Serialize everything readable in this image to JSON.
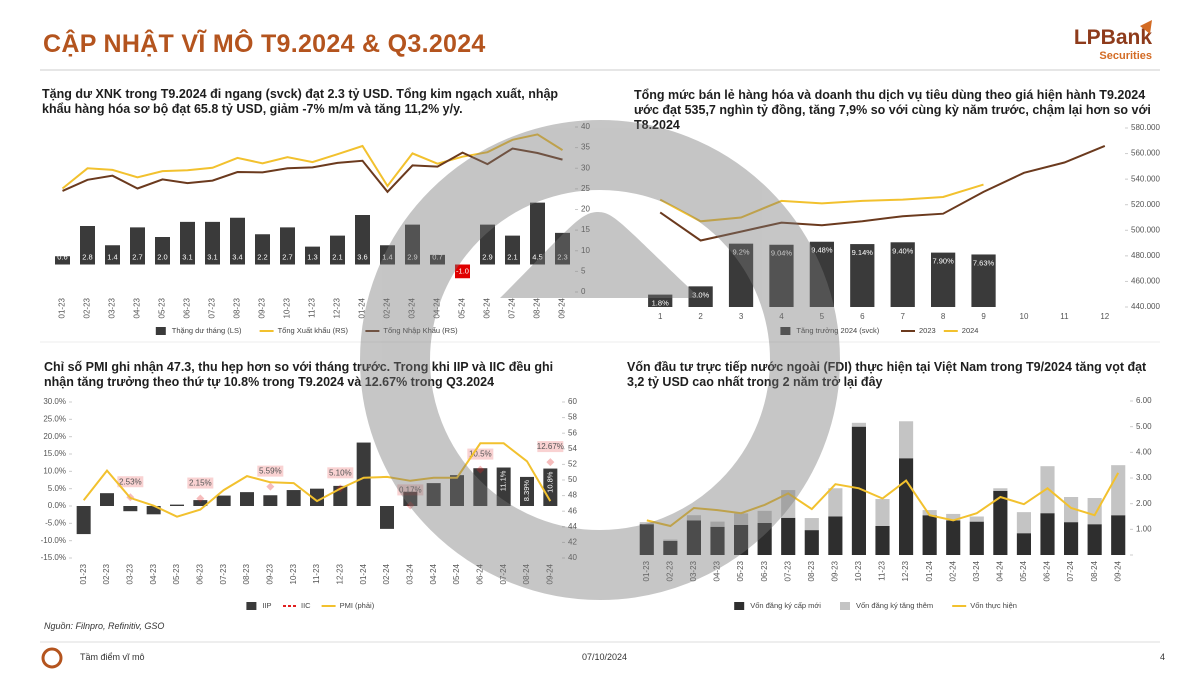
{
  "header": {
    "title": "CẬP NHẬT VĨ MÔ T9.2024 & Q3.2024",
    "logo": "LPBank",
    "logo_sub": "Securities"
  },
  "footer": {
    "source": "Nguồn: Filnpro, Refinitiv, GSO",
    "section": "Tầm điểm vĩ mô",
    "date": "07/10/2024",
    "page": "4"
  },
  "chart_data": [
    {
      "type": "combo",
      "title": "Tặng dư XNK trong T9.2024 đi ngang (svck) đạt 2.3 tỷ USD. Tổng kim ngạch xuất, nhập khẩu hàng hóa sơ bộ đạt 65.8 tỷ USD, giảm -7% m/m và tăng 11,2% y/y.",
      "categories": [
        "01-23",
        "02-23",
        "03-23",
        "04-23",
        "05-23",
        "06-23",
        "07-23",
        "08-23",
        "09-23",
        "10-23",
        "11-23",
        "12-23",
        "01-24",
        "02-24",
        "03-24",
        "04-24",
        "05-24",
        "06-24",
        "07-24",
        "08-24",
        "09-24"
      ],
      "ylim": [
        -2,
        10
      ],
      "y2lim": [
        0,
        40
      ],
      "y2ticks": [
        0,
        5,
        10,
        15,
        20,
        25,
        30,
        35,
        40
      ],
      "series": [
        {
          "name": "Thặng dư tháng (LS)",
          "kind": "bar",
          "color": "#3a3a3a",
          "negative_color": "#e00000",
          "values": [
            0.6,
            2.8,
            1.4,
            2.7,
            2.0,
            3.1,
            3.1,
            3.4,
            2.2,
            2.7,
            1.3,
            2.1,
            3.6,
            1.4,
            2.9,
            0.7,
            -1.0,
            2.9,
            2.1,
            4.5,
            2.3
          ],
          "value_labels": [
            "0.6",
            "2.8",
            "1.4",
            "2.7",
            "2.0",
            "3.1",
            "3.1",
            "3.4",
            "2.2",
            "2.7",
            "1.3",
            "2.1",
            "3.6",
            "1.4",
            "2.9",
            "0.7",
            "-1.0",
            "2.9",
            "2.1",
            "4.5",
            "2.3"
          ]
        },
        {
          "name": "Tổng Xuất khẩu (RS)",
          "kind": "line",
          "axis": "y2",
          "color": "#f2c12e",
          "values": [
            25.1,
            30.0,
            29.6,
            27.8,
            29.3,
            29.5,
            30.1,
            32.5,
            31.2,
            32.7,
            31.5,
            33.4,
            35.4,
            25.7,
            33.6,
            31.1,
            32.8,
            33.9,
            36.9,
            38.2,
            34.4
          ]
        },
        {
          "name": "Tổng Nhập Khẩu (RS)",
          "kind": "line",
          "axis": "y2",
          "color": "#6b3a1e",
          "values": [
            24.5,
            27.2,
            28.2,
            25.1,
            27.3,
            26.4,
            27.0,
            29.1,
            29.0,
            30.0,
            30.2,
            31.3,
            31.8,
            24.3,
            30.7,
            30.4,
            33.8,
            31.0,
            34.8,
            33.7,
            32.1
          ]
        }
      ]
    },
    {
      "type": "combo",
      "title": "Tổng mức bán lẻ hàng hóa và doanh thu dịch vụ tiêu dùng theo giá hiện hành T9.2024 ước đạt 535,7 nghìn tỷ đồng, tăng 7,9% so với cùng kỳ năm trước, chậm lại hơn so với T8.2024",
      "categories": [
        "1",
        "2",
        "3",
        "4",
        "5",
        "6",
        "7",
        "8",
        "9",
        "10",
        "11",
        "12"
      ],
      "ylim": [
        0,
        26
      ],
      "y2lim": [
        440000,
        580000
      ],
      "y2ticks": [
        {
          "value": 440000,
          "label": "440.000"
        },
        {
          "value": 460000,
          "label": "460.000"
        },
        {
          "value": 480000,
          "label": "480.000"
        },
        {
          "value": 500000,
          "label": "500.000"
        },
        {
          "value": 520000,
          "label": "520.000"
        },
        {
          "value": 540000,
          "label": "540.000"
        },
        {
          "value": 560000,
          "label": "560.000"
        },
        {
          "value": 580000,
          "label": "580.000"
        }
      ],
      "series": [
        {
          "name": "Tăng trưởng 2024 (svck)",
          "kind": "bar",
          "color": "#3a3a3a",
          "values": [
            1.8,
            3.0,
            9.2,
            9.04,
            9.48,
            9.14,
            9.4,
            7.9,
            7.63,
            null,
            null,
            null
          ],
          "value_labels": [
            "1.8%",
            "3.0%",
            "9.2%",
            "9.04%",
            "9.48%",
            "9.14%",
            "9.40%",
            "7.90%",
            "7.63%",
            null,
            null,
            null
          ]
        },
        {
          "name": "2023",
          "kind": "line",
          "axis": "y2",
          "color": "#6b3a1e",
          "values": [
            514000,
            492000,
            499000,
            506000,
            504000,
            507000,
            511000,
            513000,
            530000,
            545000,
            553000,
            566000
          ]
        },
        {
          "name": "2024",
          "kind": "line",
          "axis": "y2",
          "color": "#f2c12e",
          "values": [
            524000,
            507000,
            510000,
            523000,
            521000,
            523000,
            524000,
            526000,
            535700,
            null,
            null,
            null
          ]
        }
      ]
    },
    {
      "type": "combo",
      "title": "Chỉ số PMI ghi nhận 47.3, thu hẹp hơn so với tháng trước. Trong khi IIP và IIC đều ghi nhận tăng trưởng theo thứ tự 10.8% trong T9.2024 và 12.67% trong Q3.2024",
      "categories": [
        "01-23",
        "02-23",
        "03-23",
        "04-23",
        "05-23",
        "06-23",
        "07-23",
        "08-23",
        "09-23",
        "10-23",
        "11-23",
        "12-23",
        "01-24",
        "02-24",
        "03-24",
        "04-24",
        "05-24",
        "06-24",
        "07-24",
        "08-24",
        "09-24"
      ],
      "ylim": [
        -15,
        30
      ],
      "yticks": [
        {
          "value": -15,
          "label": "-15.0%"
        },
        {
          "value": -10,
          "label": "-10.0%"
        },
        {
          "value": -5,
          "label": "-5.0%"
        },
        {
          "value": 0,
          "label": "0.0%"
        },
        {
          "value": 5,
          "label": "5.0%"
        },
        {
          "value": 10,
          "label": "10.0%"
        },
        {
          "value": 15,
          "label": "15.0%"
        },
        {
          "value": 20,
          "label": "20.0%"
        },
        {
          "value": 25,
          "label": "25.0%"
        },
        {
          "value": 30,
          "label": "30.0%"
        }
      ],
      "y2lim": [
        40,
        60
      ],
      "y2ticks": [
        40,
        42,
        44,
        46,
        48,
        50,
        52,
        54,
        56,
        58,
        60
      ],
      "series": [
        {
          "name": "IIP",
          "kind": "bar",
          "color": "#3a3a3a",
          "values": [
            -8.1,
            3.7,
            -1.5,
            -2.4,
            0.4,
            1.7,
            3.0,
            4.0,
            3.1,
            4.6,
            5.0,
            5.8,
            18.3,
            -6.6,
            4.1,
            6.6,
            8.9,
            10.9,
            11.1,
            8.39,
            10.8
          ],
          "value_labels": [
            null,
            null,
            null,
            null,
            null,
            null,
            null,
            null,
            null,
            null,
            null,
            null,
            null,
            null,
            null,
            null,
            null,
            null,
            "11.1%",
            "8.39%",
            "10.8%"
          ]
        },
        {
          "name": "IIC",
          "kind": "marker",
          "color": "#e02020",
          "values": [
            null,
            null,
            2.53,
            null,
            null,
            2.15,
            null,
            null,
            5.59,
            null,
            null,
            5.1,
            null,
            null,
            0.17,
            null,
            null,
            10.5,
            null,
            null,
            12.67
          ],
          "value_labels": [
            null,
            null,
            "2.53%",
            null,
            null,
            "2.15%",
            null,
            null,
            "5.59%",
            null,
            null,
            "5.10%",
            null,
            null,
            "0.17%",
            null,
            null,
            "10.5%",
            null,
            null,
            "12.67%"
          ]
        },
        {
          "name": "PMI (phải)",
          "kind": "line",
          "axis": "y2",
          "color": "#f2c12e",
          "values": [
            47.4,
            51.2,
            47.7,
            46.7,
            45.3,
            46.2,
            48.7,
            50.5,
            49.7,
            49.6,
            47.3,
            48.9,
            50.3,
            50.4,
            49.9,
            50.3,
            50.3,
            54.7,
            54.7,
            52.4,
            47.3
          ]
        }
      ]
    },
    {
      "type": "combo",
      "title": "Vốn đầu tư trực tiếp nước ngoài (FDI) thực hiện tại Việt Nam trong T9/2024 tăng vọt  đạt 3,2 tỷ USD cao nhất trong 2 năm trở lại đây",
      "categories": [
        "01-23",
        "02-23",
        "03-23",
        "04-23",
        "05-23",
        "06-23",
        "07-23",
        "08-23",
        "09-23",
        "10-23",
        "11-23",
        "12-23",
        "01-24",
        "02-24",
        "03-24",
        "04-24",
        "05-24",
        "06-24",
        "07-24",
        "08-24",
        "09-24"
      ],
      "stacked": true,
      "y2lim": [
        0,
        6
      ],
      "y2ticks": [
        {
          "value": 0,
          "label": ""
        },
        {
          "value": 1,
          "label": "1.00"
        },
        {
          "value": 2,
          "label": "2.00"
        },
        {
          "value": 3,
          "label": "3.00"
        },
        {
          "value": 4,
          "label": "4.00"
        },
        {
          "value": 5,
          "label": "5.00"
        },
        {
          "value": 6,
          "label": "6.00"
        }
      ],
      "series": [
        {
          "name": "Vốn đăng ký cấp mới",
          "kind": "bar",
          "axis": "y2",
          "color": "#2e2e2e",
          "values": [
            1.2,
            0.55,
            1.35,
            1.1,
            1.17,
            1.25,
            1.45,
            0.97,
            1.5,
            5.0,
            1.13,
            3.77,
            1.55,
            1.35,
            1.3,
            2.5,
            0.85,
            1.63,
            1.28,
            1.2,
            1.55
          ]
        },
        {
          "name": "Vốn đăng ký tăng thêm",
          "kind": "bar",
          "axis": "y2",
          "color": "#c4c4c4",
          "values": [
            0.08,
            0.05,
            0.2,
            0.2,
            0.45,
            0.47,
            1.08,
            0.47,
            1.1,
            0.15,
            1.05,
            1.44,
            0.2,
            0.25,
            0.2,
            0.1,
            0.82,
            1.83,
            0.98,
            1.02,
            1.95
          ]
        },
        {
          "name": "Vốn thực hiện",
          "kind": "line",
          "axis": "y2",
          "color": "#f2c12e",
          "values": [
            1.35,
            1.13,
            1.83,
            1.75,
            1.63,
            1.95,
            2.4,
            1.79,
            2.76,
            2.6,
            2.2,
            2.9,
            1.55,
            1.35,
            1.63,
            2.26,
            1.98,
            2.6,
            1.83,
            1.55,
            3.2
          ]
        }
      ]
    }
  ]
}
